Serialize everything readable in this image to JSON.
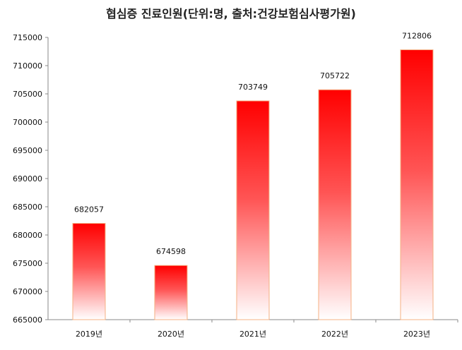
{
  "chart_data": {
    "type": "bar",
    "title": "협심증 진료인원(단위:명, 출처:건강보험심사평가원)",
    "categories": [
      "2019년",
      "2020년",
      "2021년",
      "2022년",
      "2023년"
    ],
    "values": [
      682057,
      674598,
      703749,
      705722,
      712806
    ],
    "data_labels": [
      "682057",
      "674598",
      "703749",
      "705722",
      "712806"
    ],
    "ylim": [
      665000,
      715000
    ],
    "yticks": [
      665000,
      670000,
      675000,
      680000,
      685000,
      690000,
      695000,
      700000,
      705000,
      710000,
      715000
    ],
    "ytick_labels": [
      "665000",
      "670000",
      "675000",
      "680000",
      "685000",
      "690000",
      "695000",
      "700000",
      "705000",
      "710000",
      "715000"
    ],
    "xlabel": "",
    "ylabel": "",
    "grid": false,
    "legend": "none",
    "colors": {
      "bar_top": "#ff0000",
      "bar_bottom": "#ffffff",
      "bar_border": "#f4b183",
      "axis": "#888888"
    }
  }
}
